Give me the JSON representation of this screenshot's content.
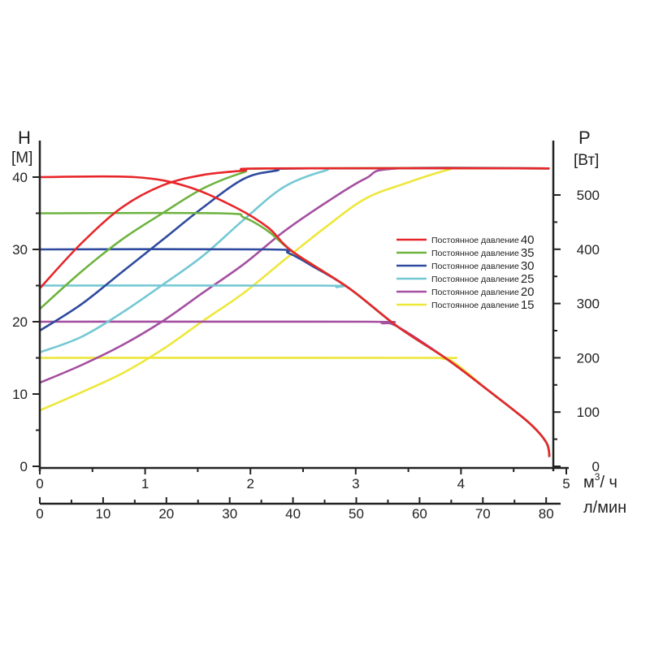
{
  "chart_data": {
    "type": "line",
    "title": "",
    "left_axis": {
      "label": "H",
      "unit": "[M]",
      "range": [
        0,
        40
      ],
      "ticks": [
        "0",
        "10",
        "20",
        "30",
        "40"
      ]
    },
    "right_axis": {
      "label": "P",
      "unit": "[Вт]",
      "range": [
        0,
        500
      ],
      "ticks": [
        "0",
        "100",
        "200",
        "300",
        "400",
        "500"
      ]
    },
    "x_axis": {
      "unit_main": "м",
      "unit_sup": "3",
      "unit_rest": "/ ч",
      "range": [
        0,
        5
      ],
      "ticks": [
        "0",
        "1",
        "2",
        "3",
        "4",
        "5"
      ]
    },
    "x_axis2": {
      "unit": "л/мин",
      "range": [
        0,
        80
      ],
      "ticks": [
        "0",
        "10",
        "20",
        "30",
        "40",
        "50",
        "60",
        "70",
        "80"
      ]
    },
    "legend_position": "right",
    "series": [
      {
        "name": "Постоянное давление",
        "value": "40",
        "color": "#e8262a",
        "head": [
          [
            0,
            40
          ],
          [
            0.9,
            40
          ],
          [
            1.4,
            38.7
          ],
          [
            1.86,
            35.8
          ],
          [
            2.17,
            33
          ],
          [
            2.4,
            29.7
          ]
        ],
        "power": [
          [
            0,
            328
          ],
          [
            0.39,
            410
          ],
          [
            0.78,
            477
          ],
          [
            1.17,
            518
          ],
          [
            1.55,
            537
          ],
          [
            1.94,
            545
          ],
          [
            2.17,
            549
          ],
          [
            4.84,
            549
          ]
        ]
      },
      {
        "name": "Постоянное давление",
        "value": "35",
        "color": "#6db33f",
        "head": [
          [
            0,
            35
          ],
          [
            1.7,
            35
          ],
          [
            1.94,
            34.4
          ],
          [
            2.17,
            32.5
          ],
          [
            2.4,
            29.7
          ]
        ],
        "power": [
          [
            0,
            290
          ],
          [
            0.39,
            358
          ],
          [
            0.78,
            418
          ],
          [
            1.17,
            467
          ],
          [
            1.55,
            512
          ],
          [
            1.94,
            542
          ],
          [
            2.17,
            549
          ],
          [
            4.84,
            549
          ]
        ]
      },
      {
        "name": "Постоянное давление",
        "value": "30",
        "color": "#2e4a9e",
        "head": [
          [
            0,
            30
          ],
          [
            2.17,
            30
          ],
          [
            2.36,
            29.5
          ],
          [
            2.6,
            27.6
          ],
          [
            2.94,
            24.6
          ]
        ],
        "power": [
          [
            0,
            250
          ],
          [
            0.39,
            298
          ],
          [
            0.78,
            358
          ],
          [
            1.17,
            418
          ],
          [
            1.55,
            477
          ],
          [
            1.94,
            530
          ],
          [
            2.25,
            545
          ],
          [
            2.48,
            549
          ],
          [
            4.84,
            549
          ]
        ]
      },
      {
        "name": "Постоянное давление",
        "value": "25",
        "color": "#74c8d4",
        "head": [
          [
            0,
            25
          ],
          [
            2.63,
            25
          ],
          [
            2.82,
            24.8
          ],
          [
            2.94,
            24.6
          ],
          [
            3.4,
            19.3
          ]
        ],
        "power": [
          [
            0,
            210
          ],
          [
            0.39,
            238
          ],
          [
            0.78,
            283
          ],
          [
            1.17,
            335
          ],
          [
            1.55,
            388
          ],
          [
            1.94,
            455
          ],
          [
            2.32,
            515
          ],
          [
            2.71,
            545
          ],
          [
            2.94,
            549
          ],
          [
            4.84,
            549
          ]
        ]
      },
      {
        "name": "Постоянное давление",
        "value": "20",
        "color": "#a44fa0",
        "head": [
          [
            0,
            20
          ],
          [
            3.1,
            20
          ],
          [
            3.25,
            19.8
          ],
          [
            3.4,
            19.3
          ],
          [
            3.87,
            14.8
          ]
        ],
        "power": [
          [
            0,
            154
          ],
          [
            0.39,
            186
          ],
          [
            0.78,
            223
          ],
          [
            1.17,
            268
          ],
          [
            1.55,
            320
          ],
          [
            1.94,
            373
          ],
          [
            2.32,
            433
          ],
          [
            2.71,
            485
          ],
          [
            3.09,
            530
          ],
          [
            3.4,
            549
          ],
          [
            4.84,
            549
          ]
        ]
      },
      {
        "name": "Постоянное давление",
        "value": "15",
        "color": "#ede73a",
        "head": [
          [
            0,
            15
          ],
          [
            3.63,
            15
          ],
          [
            3.82,
            14.9
          ],
          [
            3.95,
            14.2
          ],
          [
            4.25,
            10.6
          ],
          [
            4.64,
            6.1
          ],
          [
            4.81,
            3.3
          ],
          [
            4.84,
            1.3
          ]
        ],
        "power": [
          [
            0,
            103
          ],
          [
            0.39,
            136
          ],
          [
            0.78,
            171
          ],
          [
            1.17,
            216
          ],
          [
            1.55,
            268
          ],
          [
            1.94,
            320
          ],
          [
            2.32,
            380
          ],
          [
            2.71,
            440
          ],
          [
            3.09,
            493
          ],
          [
            3.48,
            522
          ],
          [
            3.87,
            546
          ],
          [
            4.02,
            549
          ],
          [
            4.84,
            549
          ]
        ]
      }
    ],
    "common_head_curve": [
      [
        2.4,
        29.7
      ],
      [
        2.94,
        24.6
      ],
      [
        3.4,
        19.3
      ],
      [
        3.87,
        14.8
      ],
      [
        4.25,
        10.6
      ],
      [
        4.64,
        6.1
      ],
      [
        4.81,
        3.3
      ],
      [
        4.84,
        1.3
      ]
    ]
  }
}
